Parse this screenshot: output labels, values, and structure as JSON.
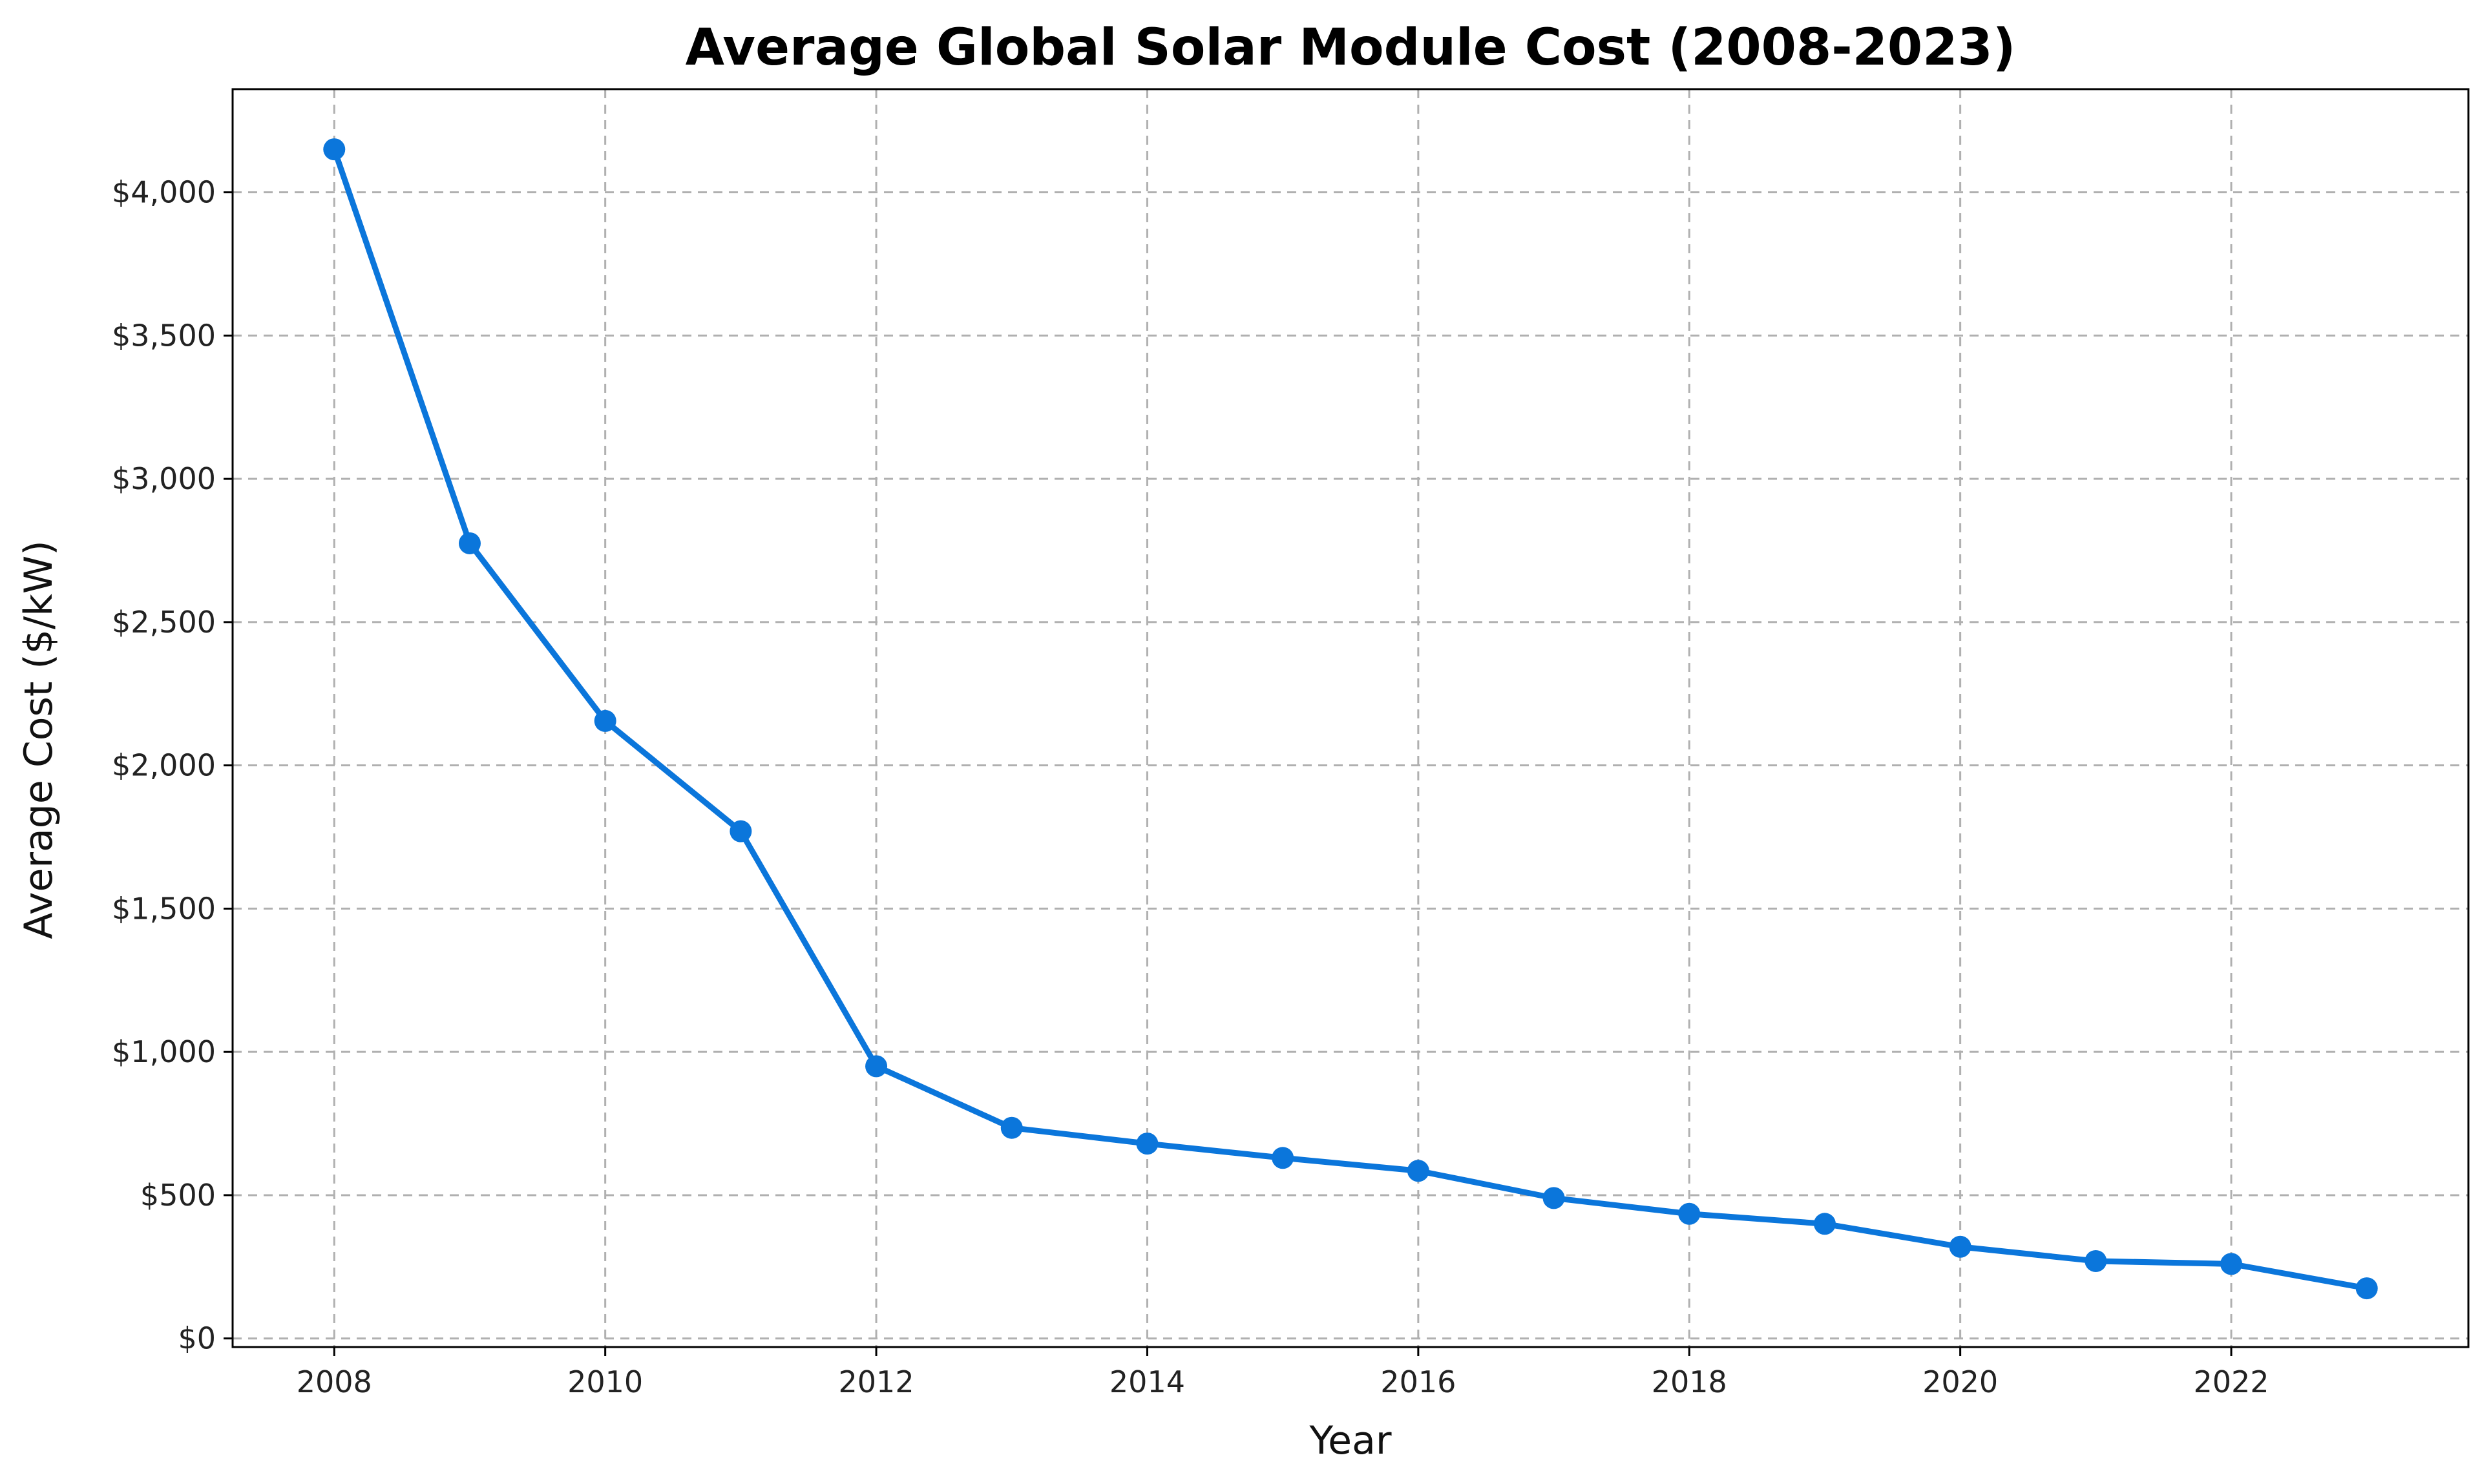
{
  "chart_data": {
    "type": "line",
    "title": "Average Global Solar Module Cost (2008-2023)",
    "xlabel": "Year",
    "ylabel": "Average Cost ($/kW)",
    "xlim": [
      2007.25,
      2023.75
    ],
    "ylim": [
      -30,
      4360
    ],
    "grid": true,
    "x_ticks": [
      2008,
      2010,
      2012,
      2014,
      2016,
      2018,
      2020,
      2022
    ],
    "x_tick_labels": [
      "2008",
      "2010",
      "2012",
      "2014",
      "2016",
      "2018",
      "2020",
      "2022"
    ],
    "y_ticks": [
      0,
      500,
      1000,
      1500,
      2000,
      2500,
      3000,
      3500,
      4000
    ],
    "y_tick_labels": [
      "$0",
      "$500",
      "$1,000",
      "$1,500",
      "$2,000",
      "$2,500",
      "$3,000",
      "$3,500",
      "$4,000"
    ],
    "series": [
      {
        "name": "Average Cost",
        "color": "#0b76db",
        "x": [
          2008,
          2009,
          2010,
          2011,
          2012,
          2013,
          2014,
          2015,
          2016,
          2017,
          2018,
          2019,
          2020,
          2021,
          2022,
          2023
        ],
        "values": [
          4150,
          2775,
          2155,
          1770,
          950,
          735,
          680,
          630,
          585,
          490,
          435,
          400,
          320,
          270,
          260,
          175
        ]
      }
    ]
  }
}
